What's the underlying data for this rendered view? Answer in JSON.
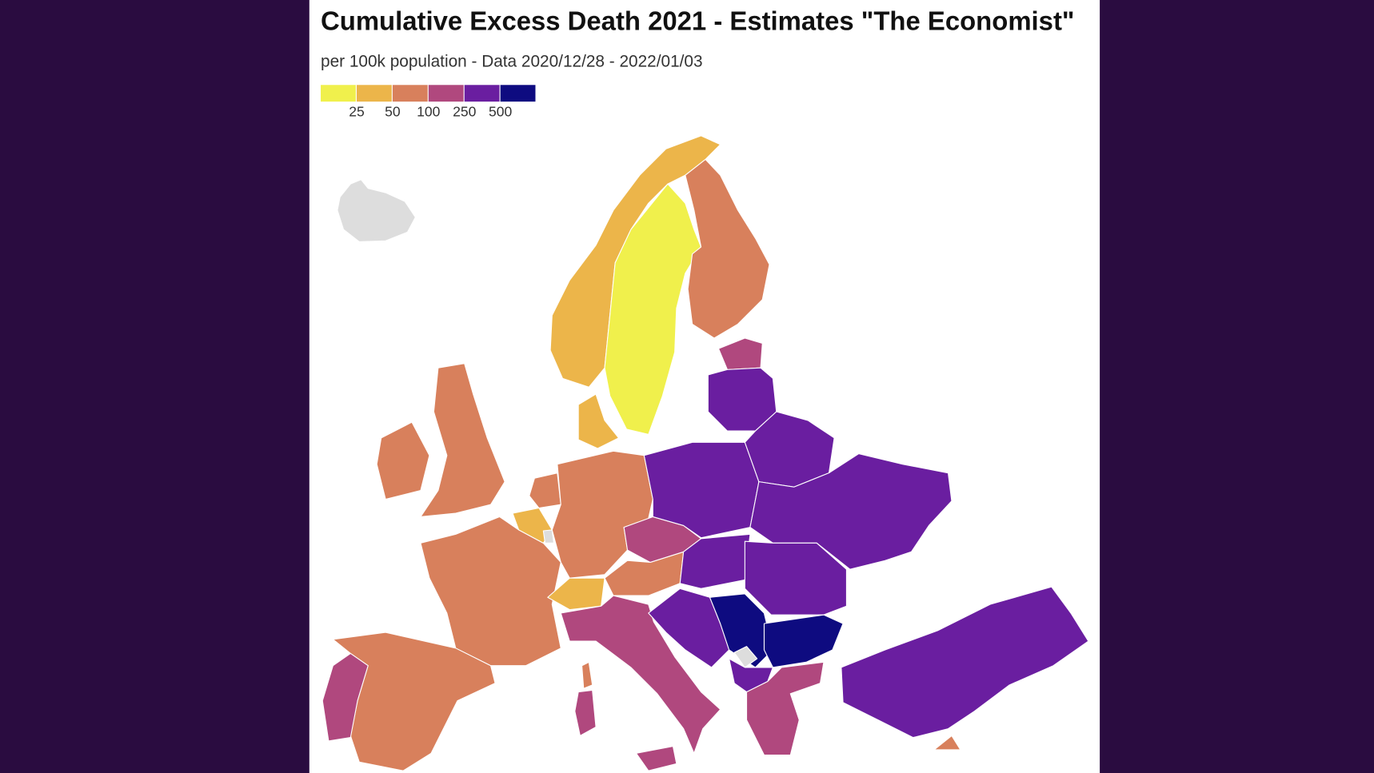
{
  "map": {
    "title": "Cumulative Excess Death 2021 - Estimates \"The Economist\"",
    "subtitle": "per 100k population - Data 2020/12/28 - 2022/01/03",
    "legend": {
      "colors": [
        "#f0f04c",
        "#ecb54a",
        "#d8805c",
        "#b0487e",
        "#6a1ea0",
        "#0e0b80"
      ],
      "ticks": [
        25,
        50,
        100,
        250,
        500
      ]
    }
  }
}
